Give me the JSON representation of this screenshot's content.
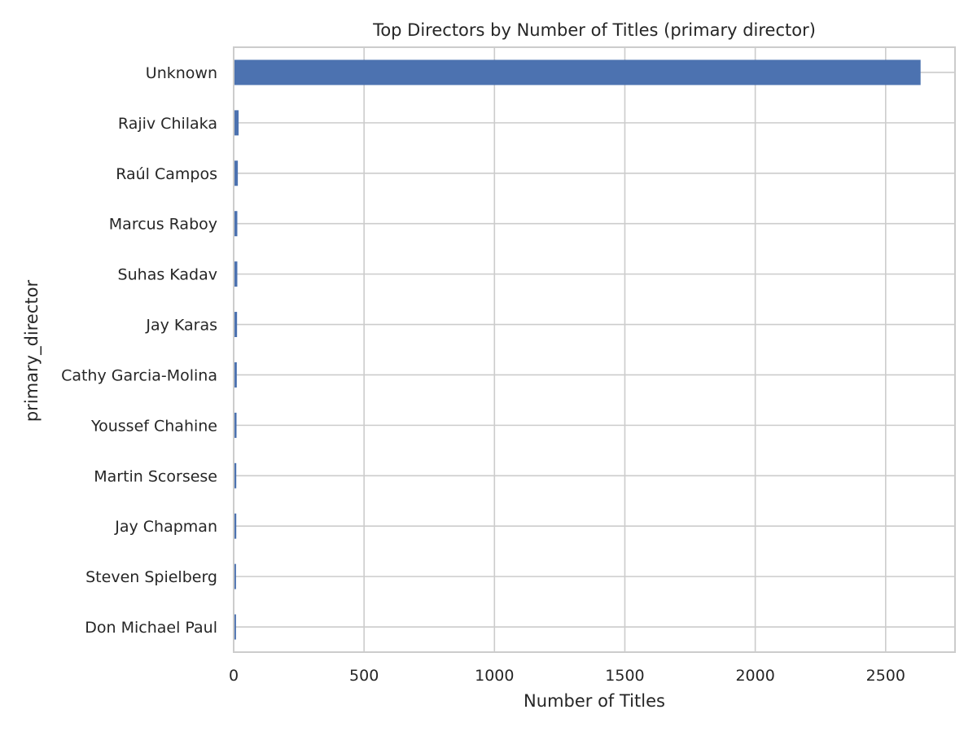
{
  "colors": {
    "bar": "#4c72b0",
    "grid": "#cccccc",
    "spine": "#cccccc",
    "text": "#262626",
    "background": "#ffffff"
  },
  "chart_data": {
    "type": "bar",
    "orientation": "horizontal",
    "title": "Top Directors by Number of Titles (primary director)",
    "xlabel": "Number of Titles",
    "ylabel": "primary_director",
    "categories": [
      "Unknown",
      "Rajiv Chilaka",
      "Raúl Campos",
      "Marcus Raboy",
      "Suhas Kadav",
      "Jay Karas",
      "Cathy Garcia-Molina",
      "Youssef Chahine",
      "Martin Scorsese",
      "Jay Chapman",
      "Steven Spielberg",
      "Don Michael Paul"
    ],
    "values": [
      2634,
      19,
      16,
      14,
      14,
      13,
      12,
      11,
      10,
      10,
      9,
      9
    ],
    "xlim": [
      0,
      2766
    ],
    "xticks": [
      0,
      500,
      1000,
      1500,
      2000,
      2500
    ],
    "xtick_labels": [
      "0",
      "500",
      "1000",
      "1500",
      "2000",
      "2500"
    ],
    "grid": true,
    "legend": "none"
  }
}
